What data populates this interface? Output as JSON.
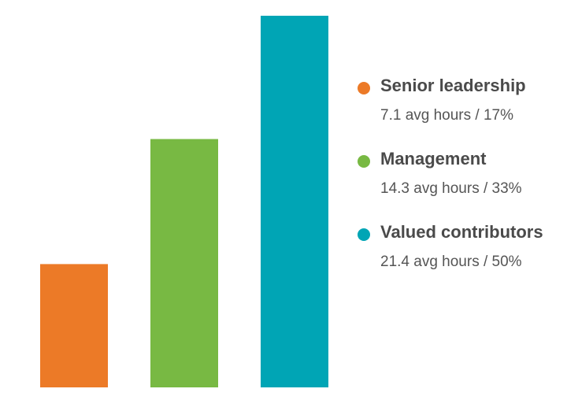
{
  "chart_data": {
    "type": "bar",
    "categories": [
      "Senior leadership",
      "Management",
      "Valued contributors"
    ],
    "values": [
      7.1,
      14.3,
      21.4
    ],
    "colors": [
      "#ec7a27",
      "#78b943",
      "#00a5b5"
    ],
    "title": "",
    "xlabel": "",
    "ylabel": "",
    "ylim": [
      0,
      21.4
    ],
    "grid": false,
    "axes_visible": false,
    "legend_position": "right",
    "legend": [
      {
        "name": "Senior leadership",
        "detail": "7.1 avg hours / 17%",
        "color": "#ec7a27"
      },
      {
        "name": "Management",
        "detail": "14.3 avg hours / 33%",
        "color": "#78b943"
      },
      {
        "name": "Valued contributors",
        "detail": "21.4 avg hours / 50%",
        "color": "#00a5b5"
      }
    ]
  }
}
